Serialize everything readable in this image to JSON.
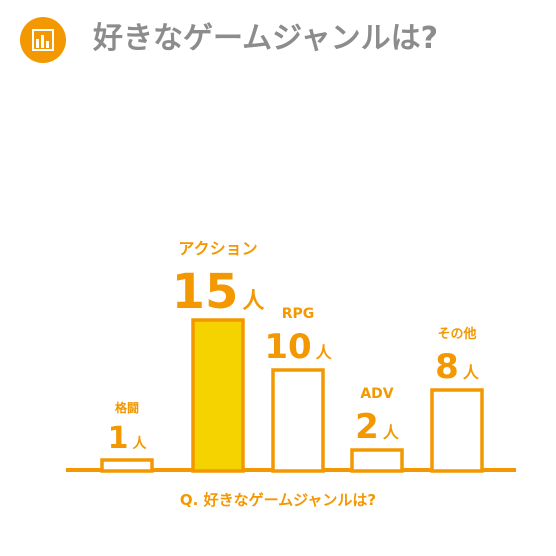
{
  "header": {
    "title": "好きなゲームジャンルは?",
    "icon": "bar-chart-icon"
  },
  "colors": {
    "accent": "#f39800",
    "highlight_fill": "#f4d300",
    "title_gray": "#8c8c8c"
  },
  "chart_data": {
    "type": "bar",
    "categories": [
      "格闘",
      "アクション",
      "RPG",
      "ADV",
      "その他"
    ],
    "values": [
      1,
      15,
      10,
      2,
      8
    ],
    "unit": "人",
    "highlight_index": 1,
    "xlabel": "Q. 好きなゲームジャンルは?",
    "ylabel": "",
    "grid": false,
    "legend": "none"
  }
}
